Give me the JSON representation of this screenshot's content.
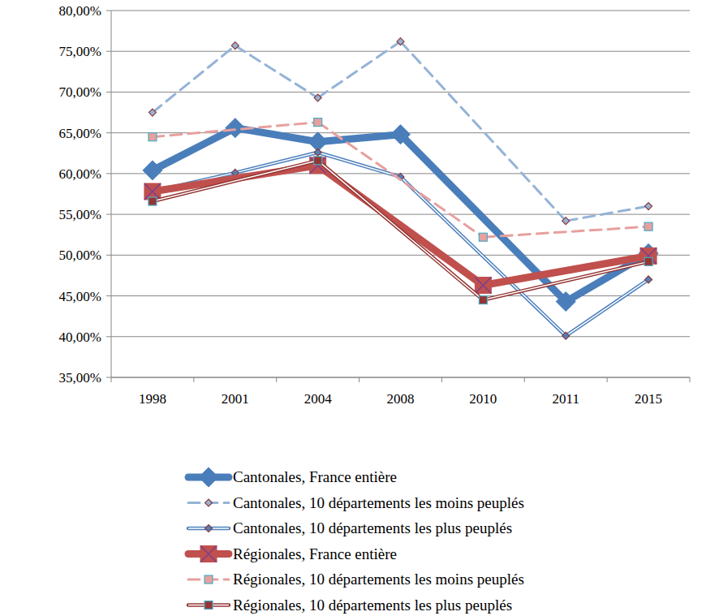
{
  "chart_data": {
    "type": "line",
    "categories": [
      "1998",
      "2001",
      "2004",
      "2008",
      "2010",
      "2011",
      "2015"
    ],
    "ylim": [
      35,
      80
    ],
    "yticks": [
      {
        "value": 35,
        "label": "35,00%"
      },
      {
        "value": 40,
        "label": "40,00%"
      },
      {
        "value": 45,
        "label": "45,00%"
      },
      {
        "value": 50,
        "label": "50,00%"
      },
      {
        "value": 55,
        "label": "55,00%"
      },
      {
        "value": 60,
        "label": "60,00%"
      },
      {
        "value": 65,
        "label": "65,00%"
      },
      {
        "value": 70,
        "label": "70,00%"
      },
      {
        "value": 75,
        "label": "75,00%"
      },
      {
        "value": 80,
        "label": "80,00%"
      }
    ],
    "grid": true,
    "legend": "bottom",
    "series": [
      {
        "name": "Cantonales, France entière",
        "color": "#4a7ebb",
        "line_style": "solid",
        "marker": "diamond",
        "values": [
          60.4,
          65.6,
          63.9,
          64.8,
          null,
          44.3,
          50.2
        ]
      },
      {
        "name": "Cantonales, 10 départements les moins peuplés",
        "color": "#95b3d7",
        "line_style": "dashed",
        "marker": "diamond",
        "values": [
          67.5,
          75.7,
          69.3,
          76.2,
          null,
          54.2,
          56.0
        ]
      },
      {
        "name": "Cantonales, 10 départements les plus peuplés",
        "color": "#4f81bd",
        "line_style": "double",
        "marker": "diamond",
        "values": [
          57.8,
          60.1,
          62.6,
          59.6,
          null,
          40.1,
          47.0
        ]
      },
      {
        "name": "Régionales, France entière",
        "color": "#c0504d",
        "line_style": "solid",
        "marker": "square-x",
        "values": [
          57.8,
          null,
          61.0,
          null,
          46.3,
          null,
          49.9
        ]
      },
      {
        "name": "Régionales, 10 départements les moins peuplés",
        "color": "#e6a09e",
        "line_style": "dashed",
        "marker": "square",
        "values": [
          64.5,
          null,
          66.3,
          null,
          52.2,
          null,
          53.5
        ]
      },
      {
        "name": "Régionales, 10 départements les plus peuplés",
        "color": "#943634",
        "line_style": "double",
        "marker": "square",
        "values": [
          56.6,
          null,
          61.6,
          null,
          44.5,
          null,
          49.2
        ]
      }
    ]
  }
}
